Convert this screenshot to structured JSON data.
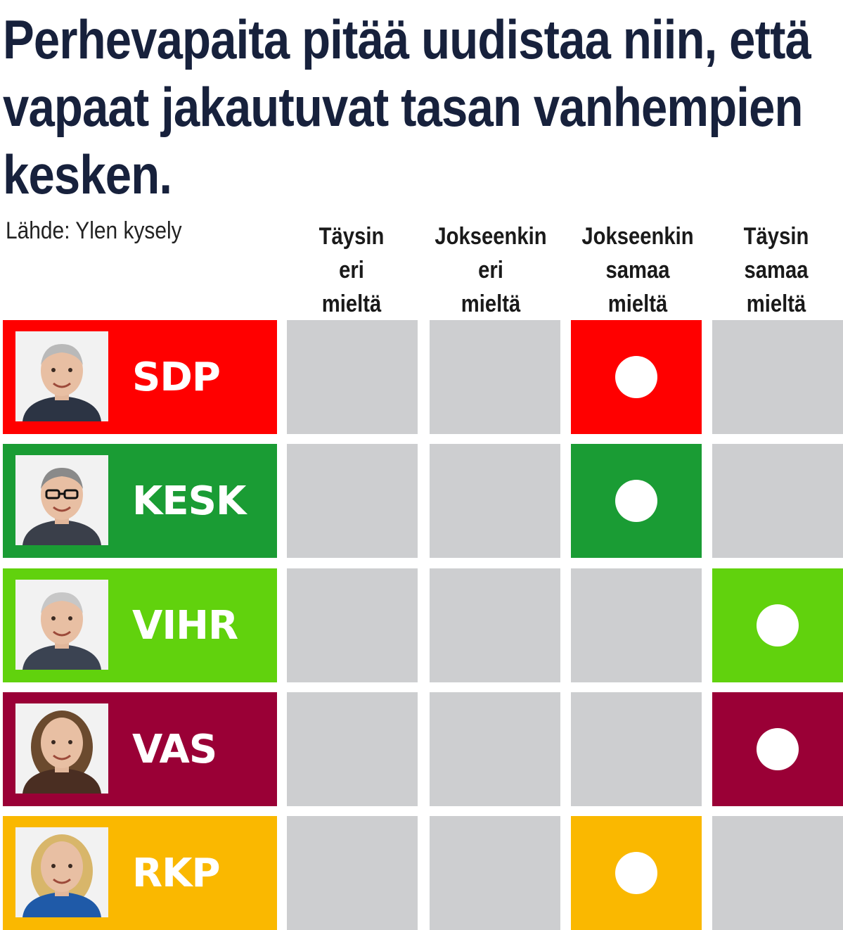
{
  "chart_data": {
    "type": "table",
    "title": "Perhevapaita pitää uudistaa niin, että vapaat jakautuvat tasan vanhempien kesken.",
    "source": "Lähde: Ylen kysely",
    "columns": [
      "Täysin\neri\nmieltä",
      "Jokseenkin\neri\nmieltä",
      "Jokseenkin\nsamaa\nmieltä",
      "Täysin\nsamaa\nmieltä"
    ],
    "rows": [
      {
        "party": "SDP",
        "color": "#ff0000",
        "answer_index": 2
      },
      {
        "party": "KESK",
        "color": "#1a9c34",
        "answer_index": 2
      },
      {
        "party": "VIHR",
        "color": "#61d20d",
        "answer_index": 3
      },
      {
        "party": "VAS",
        "color": "#9a0036",
        "answer_index": 3
      },
      {
        "party": "RKP",
        "color": "#fab800",
        "answer_index": 2
      }
    ],
    "empty_cell_color": "#cdced0",
    "marker": "white-dot"
  }
}
